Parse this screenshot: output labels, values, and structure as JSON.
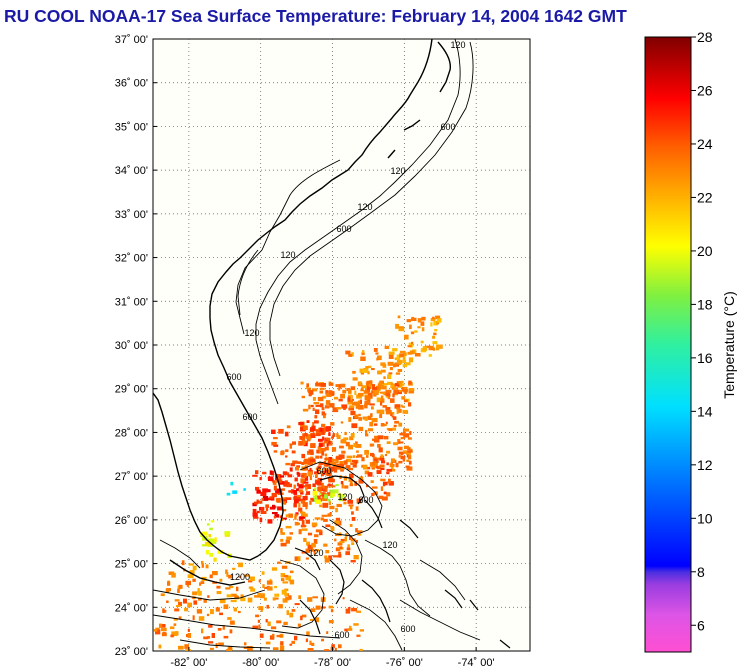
{
  "title": "RU COOL  NOAA-17  Sea Surface Temperature:  February 14, 2004 1642 GMT",
  "map": {
    "lat_range": [
      23,
      37
    ],
    "lon_range": [
      -83,
      -72.5
    ],
    "lat_labels": [
      "37˚ 00'",
      "36˚ 00'",
      "35˚ 00'",
      "34˚ 00'",
      "33˚ 00'",
      "32˚ 00'",
      "31˚ 00'",
      "30˚ 00'",
      "29˚ 00'",
      "28˚ 00'",
      "27˚ 00'",
      "26˚ 00'",
      "25˚ 00'",
      "24˚ 00'",
      "23˚ 00'"
    ],
    "lon_labels": [
      "-82˚ 00'",
      "-80˚ 00'",
      "-78˚ 00'",
      "-76˚ 00'",
      "-74˚ 00'"
    ],
    "contour_labels": [
      "120",
      "600",
      "120",
      "120",
      "600",
      "120",
      "120",
      "600",
      "600",
      "600",
      "120",
      "600",
      "120",
      "1200",
      "120",
      "600",
      "600"
    ],
    "gridlines": true
  },
  "colorbar": {
    "label": "Temperature (°C)",
    "min": 5,
    "max": 28,
    "ticks": [
      "6",
      "8",
      "10",
      "12",
      "14",
      "16",
      "18",
      "20",
      "22",
      "24",
      "26",
      "28"
    ]
  },
  "colors": {
    "title": "#1a1aa6",
    "plot_bg": "#fffffa",
    "coast": "#000000"
  }
}
